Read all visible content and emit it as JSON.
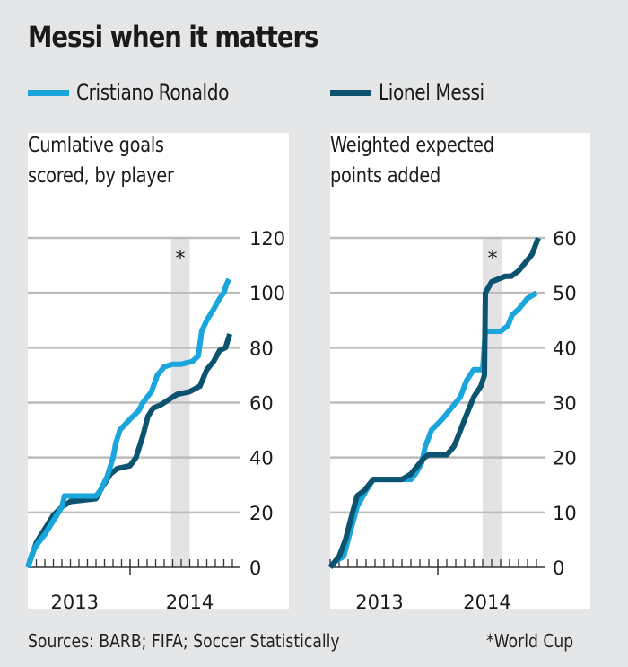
{
  "title": "Messi when it matters",
  "legend": [
    {
      "label": "Cristiano Ronaldo",
      "color": "#19a6dc"
    },
    {
      "label": "Lionel Messi",
      "color": "#0c5370"
    }
  ],
  "colors": {
    "ronaldo": "#19a6dc",
    "messi": "#0c5370",
    "grid": "#bcbcbc",
    "band": "#e3e3e5",
    "axis": "#333333"
  },
  "footer": {
    "sources": "Sources: BARB; FIFA; Soccer Statistically",
    "note": "*World Cup"
  },
  "chart_data": [
    {
      "type": "line",
      "title": "Cumlative goals scored, by player",
      "title_lines": [
        "Cumlative goals",
        "scored, by player"
      ],
      "xlabel": "",
      "ylabel": "",
      "x_unit": "months since Jan 2013",
      "xlim": [
        0,
        24
      ],
      "ylim": [
        0,
        120
      ],
      "yticks": [
        0,
        20,
        40,
        60,
        80,
        100,
        120
      ],
      "ytick_labels": [
        "0",
        "20",
        "40",
        "60",
        "80",
        "100",
        "120"
      ],
      "xtick_labels": [
        {
          "label": "2013",
          "at": 5.5
        },
        {
          "label": "2014",
          "at": 19
        }
      ],
      "year_boundary": 12,
      "grid": true,
      "highlight_band": {
        "from": 16.8,
        "to": 19,
        "marker": "*",
        "label": "World Cup"
      },
      "series": [
        {
          "name": "Cristiano Ronaldo",
          "key": "ronaldo",
          "points": [
            [
              0,
              0
            ],
            [
              0.5,
              5
            ],
            [
              1,
              8
            ],
            [
              2,
              12
            ],
            [
              3,
              17
            ],
            [
              4,
              22
            ],
            [
              4.3,
              26
            ],
            [
              5,
              26
            ],
            [
              8,
              26
            ],
            [
              8.5,
              28
            ],
            [
              9.3,
              33
            ],
            [
              10,
              40
            ],
            [
              10.3,
              45
            ],
            [
              10.8,
              50
            ],
            [
              12,
              54
            ],
            [
              13,
              57
            ],
            [
              13.5,
              60
            ],
            [
              14.5,
              64
            ],
            [
              15.2,
              70
            ],
            [
              16,
              73
            ],
            [
              17,
              74
            ],
            [
              18,
              74
            ],
            [
              19.3,
              75
            ],
            [
              20,
              77
            ],
            [
              20.4,
              86
            ],
            [
              21,
              90
            ],
            [
              21.8,
              94
            ],
            [
              22.5,
              98
            ],
            [
              23,
              100
            ],
            [
              23.3,
              103
            ],
            [
              23.6,
              105
            ]
          ]
        },
        {
          "name": "Lionel Messi",
          "key": "messi",
          "points": [
            [
              0,
              0
            ],
            [
              1,
              9
            ],
            [
              2,
              14
            ],
            [
              3,
              19
            ],
            [
              4,
              22
            ],
            [
              5,
              24
            ],
            [
              8,
              25
            ],
            [
              8.7,
              29
            ],
            [
              9.7,
              34
            ],
            [
              10.5,
              36
            ],
            [
              12,
              37
            ],
            [
              12.7,
              40
            ],
            [
              13.3,
              46
            ],
            [
              13.5,
              48
            ],
            [
              14.1,
              55
            ],
            [
              14.7,
              58
            ],
            [
              15.5,
              59
            ],
            [
              16.5,
              61
            ],
            [
              17.5,
              63
            ],
            [
              19,
              64
            ],
            [
              20.2,
              66
            ],
            [
              21,
              72
            ],
            [
              21.8,
              75
            ],
            [
              22.5,
              79
            ],
            [
              23.2,
              80
            ],
            [
              23.7,
              85
            ]
          ]
        }
      ]
    },
    {
      "type": "line",
      "title": "Weighted expected points added",
      "title_lines": [
        "Weighted expected",
        "points added"
      ],
      "xlabel": "",
      "ylabel": "",
      "x_unit": "months since Jan 2013",
      "xlim": [
        0,
        24
      ],
      "ylim": [
        0,
        60
      ],
      "yticks": [
        0,
        10,
        20,
        30,
        40,
        50,
        60
      ],
      "ytick_labels": [
        "0",
        "10",
        "20",
        "30",
        "40",
        "50",
        "60"
      ],
      "xtick_labels": [
        {
          "label": "2013",
          "at": 5.5
        },
        {
          "label": "2014",
          "at": 17.5
        }
      ],
      "year_boundary": 12,
      "grid": true,
      "highlight_band": {
        "from": 17,
        "to": 19.2,
        "marker": "*",
        "label": "World Cup"
      },
      "series": [
        {
          "name": "Cristiano Ronaldo",
          "key": "ronaldo",
          "points": [
            [
              0,
              0
            ],
            [
              0.5,
              1
            ],
            [
              1.5,
              2
            ],
            [
              2,
              5
            ],
            [
              2.5,
              8
            ],
            [
              3,
              11
            ],
            [
              4,
              14
            ],
            [
              4.8,
              16
            ],
            [
              6,
              16
            ],
            [
              9,
              16
            ],
            [
              9.5,
              17
            ],
            [
              10.2,
              19
            ],
            [
              10.6,
              22
            ],
            [
              11.3,
              25
            ],
            [
              12.5,
              27
            ],
            [
              13,
              28
            ],
            [
              14,
              30
            ],
            [
              14.5,
              31
            ],
            [
              15.2,
              34
            ],
            [
              16,
              36
            ],
            [
              17,
              36
            ],
            [
              17.3,
              43
            ],
            [
              19,
              43
            ],
            [
              19.8,
              44
            ],
            [
              20.3,
              46
            ],
            [
              21,
              47
            ],
            [
              22,
              49
            ],
            [
              23,
              50
            ]
          ]
        },
        {
          "name": "Lionel Messi",
          "key": "messi",
          "points": [
            [
              0,
              0
            ],
            [
              1,
              2
            ],
            [
              1.7,
              5
            ],
            [
              2.5,
              10
            ],
            [
              3,
              13
            ],
            [
              3.8,
              14
            ],
            [
              4.8,
              16
            ],
            [
              8,
              16
            ],
            [
              9,
              17
            ],
            [
              10,
              19
            ],
            [
              10.5,
              20
            ],
            [
              11,
              20.5
            ],
            [
              13,
              20.5
            ],
            [
              13.8,
              22
            ],
            [
              14.3,
              24
            ],
            [
              15,
              27
            ],
            [
              15.5,
              29
            ],
            [
              16,
              31
            ],
            [
              16.8,
              33
            ],
            [
              17.2,
              35
            ],
            [
              17.3,
              50
            ],
            [
              18,
              52
            ],
            [
              19.5,
              53
            ],
            [
              20.2,
              53
            ],
            [
              21,
              54
            ],
            [
              22,
              56
            ],
            [
              22.5,
              57
            ],
            [
              23.2,
              60
            ]
          ]
        }
      ]
    }
  ]
}
